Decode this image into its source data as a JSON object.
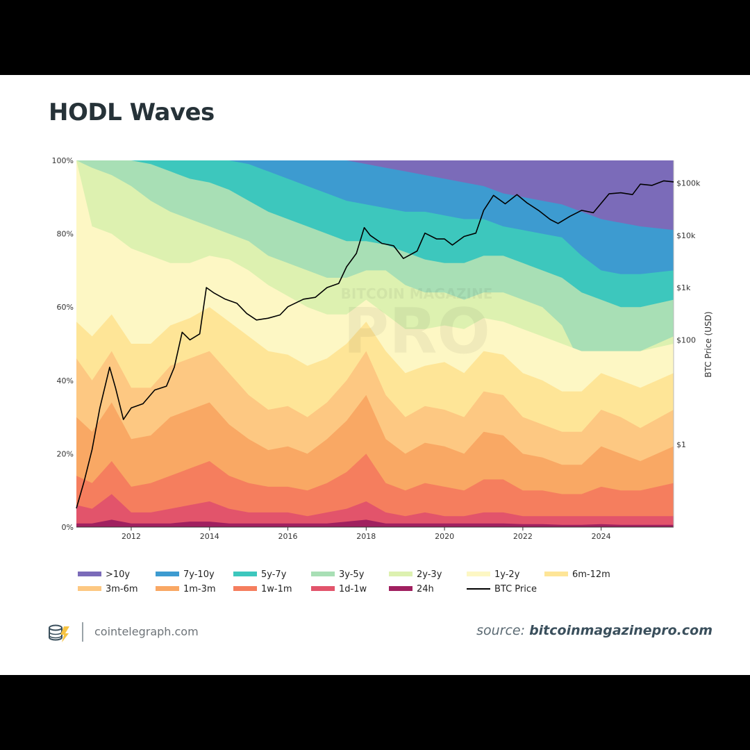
{
  "page": {
    "title": "HODL Waves",
    "site": "cointelegraph.com",
    "source_prefix": "source:",
    "source_link": "bitcoinmagazinepro.com",
    "watermark_top": "BITCOIN MAGAZINE",
    "watermark_main": "PRO"
  },
  "chart_data": {
    "type": "area",
    "title": "HODL Waves",
    "xlabel": "",
    "ylabel_left": "",
    "ylabel_right": "BTC Price (USD)",
    "x_ticks": [
      "2012",
      "2014",
      "2016",
      "2018",
      "2020",
      "2022",
      "2024"
    ],
    "y_ticks_left": [
      "0%",
      "20%",
      "40%",
      "60%",
      "80%",
      "100%"
    ],
    "y_ticks_right": [
      "$1",
      "$100",
      "$1k",
      "$10k",
      "$100k"
    ],
    "xlim": [
      2010.6,
      2025.85
    ],
    "ylim": [
      0,
      100
    ],
    "stack_order": "bottom-to-top: 24h, 1d-1w, 1w-1m, 1m-3m, 3m-6m, 6m-12m, 1y-2y, 2y-3y, 3y-5y, 5y-7y, 7y-10y, >10y",
    "x": [
      2010.6,
      2011.0,
      2011.5,
      2012.0,
      2012.5,
      2013.0,
      2013.5,
      2014.0,
      2014.5,
      2015.0,
      2015.5,
      2016.0,
      2016.5,
      2017.0,
      2017.5,
      2018.0,
      2018.5,
      2019.0,
      2019.5,
      2020.0,
      2020.5,
      2021.0,
      2021.5,
      2022.0,
      2022.5,
      2023.0,
      2023.5,
      2024.0,
      2024.5,
      2025.0,
      2025.85
    ],
    "series": [
      {
        "name": "24h",
        "color": "#a0205f",
        "boundary": [
          1,
          1,
          2,
          1,
          1,
          1,
          1.5,
          1.5,
          1,
          1,
          1,
          1,
          1,
          1,
          1.5,
          2,
          1,
          1,
          1,
          1,
          1,
          1,
          1,
          0.8,
          0.8,
          0.6,
          0.6,
          0.8,
          0.6,
          0.6,
          0.6
        ]
      },
      {
        "name": "1d-1w",
        "color": "#e2546b",
        "boundary": [
          6,
          5,
          9,
          4,
          4,
          5,
          6,
          7,
          5,
          4,
          4,
          4,
          3,
          4,
          5,
          7,
          4,
          3,
          4,
          3,
          3,
          4,
          4,
          3,
          3,
          3,
          3,
          3,
          3,
          3,
          3
        ]
      },
      {
        "name": "1w-1m",
        "color": "#f57e5e",
        "boundary": [
          14,
          12,
          18,
          11,
          12,
          14,
          16,
          18,
          14,
          12,
          11,
          11,
          10,
          12,
          15,
          20,
          12,
          10,
          12,
          11,
          10,
          13,
          13,
          10,
          10,
          9,
          9,
          11,
          10,
          10,
          12
        ]
      },
      {
        "name": "1m-3m",
        "color": "#f9a864",
        "boundary": [
          30,
          26,
          34,
          24,
          25,
          30,
          32,
          34,
          28,
          24,
          21,
          22,
          20,
          24,
          29,
          36,
          24,
          20,
          23,
          22,
          20,
          26,
          25,
          20,
          19,
          17,
          17,
          22,
          20,
          18,
          22
        ]
      },
      {
        "name": "3m-6m",
        "color": "#fdc882",
        "boundary": [
          46,
          40,
          48,
          38,
          38,
          44,
          46,
          48,
          42,
          36,
          32,
          33,
          30,
          34,
          40,
          48,
          36,
          30,
          33,
          32,
          30,
          37,
          36,
          30,
          28,
          26,
          26,
          32,
          30,
          27,
          32
        ]
      },
      {
        "name": "6m-12m",
        "color": "#fee597",
        "boundary": [
          56,
          52,
          58,
          50,
          50,
          55,
          57,
          60,
          56,
          52,
          48,
          47,
          44,
          46,
          50,
          56,
          48,
          42,
          44,
          45,
          42,
          48,
          47,
          42,
          40,
          37,
          37,
          42,
          40,
          38,
          42
        ]
      },
      {
        "name": "1y-2y",
        "color": "#fdf7c4",
        "boundary": [
          100,
          82,
          80,
          76,
          74,
          72,
          72,
          74,
          73,
          70,
          66,
          63,
          60,
          58,
          58,
          62,
          58,
          54,
          54,
          55,
          54,
          57,
          56,
          54,
          52,
          50,
          48,
          48,
          48,
          48,
          50
        ]
      },
      {
        "name": "2y-3y",
        "color": "#ddf1b0",
        "boundary": [
          100,
          98,
          96,
          93,
          89,
          86,
          84,
          82,
          80,
          78,
          74,
          72,
          70,
          68,
          68,
          70,
          70,
          66,
          64,
          64,
          62,
          64,
          64,
          62,
          60,
          55,
          44,
          44,
          46,
          48,
          52
        ]
      },
      {
        "name": "3y-5y",
        "color": "#a8dfb5",
        "boundary": [
          100,
          100,
          100,
          100,
          99,
          97,
          95,
          94,
          92,
          89,
          86,
          84,
          82,
          80,
          78,
          78,
          77,
          75,
          73,
          72,
          72,
          74,
          74,
          72,
          70,
          68,
          64,
          62,
          60,
          60,
          62
        ]
      },
      {
        "name": "5y-7y",
        "color": "#3dc7bd",
        "boundary": [
          100,
          100,
          100,
          100,
          100,
          100,
          100,
          100,
          100,
          99,
          97,
          95,
          93,
          91,
          89,
          88,
          87,
          86,
          86,
          85,
          84,
          84,
          82,
          81,
          80,
          79,
          74,
          70,
          69,
          69,
          70
        ]
      },
      {
        "name": "7y-10y",
        "color": "#3d9bd0",
        "boundary": [
          100,
          100,
          100,
          100,
          100,
          100,
          100,
          100,
          100,
          100,
          100,
          100,
          100,
          100,
          100,
          99,
          98,
          97,
          96,
          95,
          94,
          93,
          91,
          90,
          89,
          88,
          86,
          84,
          83,
          82,
          81
        ]
      },
      {
        "name": ">10y",
        "color": "#7b6bb9",
        "boundary": [
          100,
          100,
          100,
          100,
          100,
          100,
          100,
          100,
          100,
          100,
          100,
          100,
          100,
          100,
          100,
          100,
          100,
          100,
          100,
          100,
          100,
          100,
          100,
          100,
          100,
          100,
          100,
          100,
          100,
          100,
          100
        ]
      }
    ],
    "price_series": {
      "name": "BTC Price",
      "x": [
        2010.6,
        2010.8,
        2011.0,
        2011.2,
        2011.45,
        2011.6,
        2011.8,
        2012.0,
        2012.3,
        2012.6,
        2012.9,
        2013.1,
        2013.3,
        2013.5,
        2013.75,
        2013.92,
        2014.1,
        2014.4,
        2014.7,
        2014.95,
        2015.2,
        2015.5,
        2015.8,
        2016.0,
        2016.4,
        2016.7,
        2017.0,
        2017.3,
        2017.5,
        2017.75,
        2017.95,
        2018.1,
        2018.4,
        2018.7,
        2018.95,
        2019.3,
        2019.5,
        2019.8,
        2020.0,
        2020.2,
        2020.5,
        2020.8,
        2021.0,
        2021.25,
        2021.55,
        2021.85,
        2022.1,
        2022.4,
        2022.7,
        2022.9,
        2023.2,
        2023.5,
        2023.8,
        2024.2,
        2024.5,
        2024.8,
        2025.0,
        2025.3,
        2025.6,
        2025.85
      ],
      "price_usd": [
        0.06,
        0.2,
        0.8,
        5,
        30,
        12,
        3,
        5,
        6,
        11,
        13,
        30,
        140,
        100,
        130,
        1000,
        800,
        600,
        500,
        320,
        240,
        260,
        300,
        430,
        600,
        650,
        1000,
        1200,
        2500,
        4500,
        14000,
        10000,
        7000,
        6300,
        3600,
        5000,
        11000,
        8500,
        8500,
        6500,
        9500,
        11000,
        30000,
        58000,
        40000,
        60000,
        42000,
        30000,
        20000,
        16800,
        23000,
        30000,
        27000,
        62000,
        65000,
        60000,
        95000,
        90000,
        110000,
        105000
      ]
    }
  }
}
